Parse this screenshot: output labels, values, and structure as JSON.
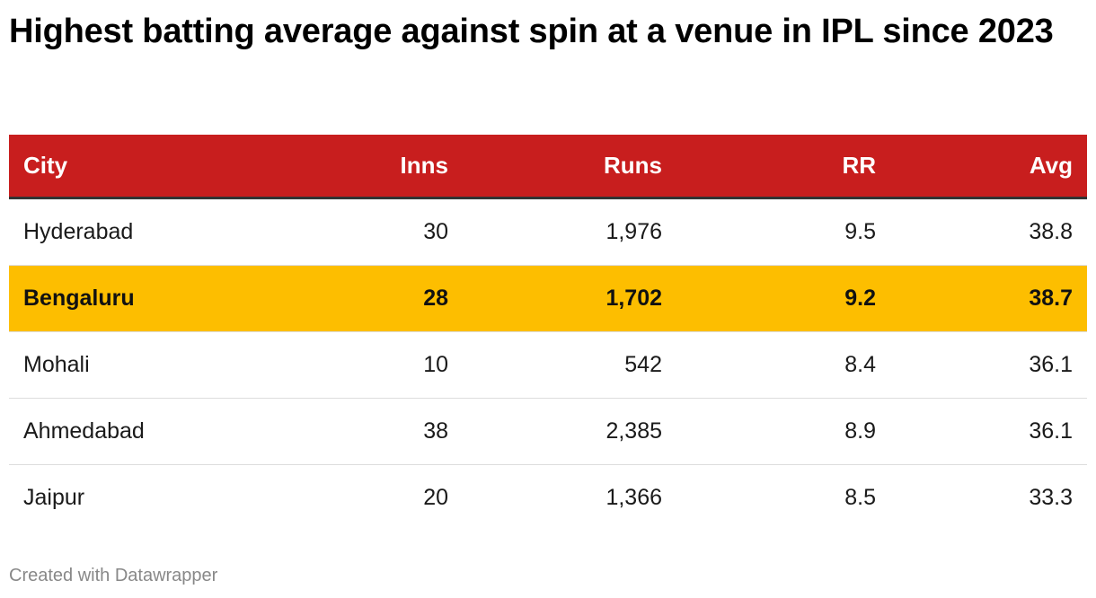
{
  "title": "Highest batting average against spin at a venue in IPL since 2023",
  "columns": [
    "City",
    "Inns",
    "Runs",
    "RR",
    "Avg"
  ],
  "rows": [
    {
      "city": "Hyderabad",
      "inns": "30",
      "runs": "1,976",
      "rr": "9.5",
      "avg": "38.8",
      "highlight": false
    },
    {
      "city": "Bengaluru",
      "inns": "28",
      "runs": "1,702",
      "rr": "9.2",
      "avg": "38.7",
      "highlight": true
    },
    {
      "city": "Mohali",
      "inns": "10",
      "runs": "542",
      "rr": "8.4",
      "avg": "36.1",
      "highlight": false
    },
    {
      "city": "Ahmedabad",
      "inns": "38",
      "runs": "2,385",
      "rr": "8.9",
      "avg": "36.1",
      "highlight": false
    },
    {
      "city": "Jaipur",
      "inns": "20",
      "runs": "1,366",
      "rr": "8.5",
      "avg": "33.3",
      "highlight": false
    }
  ],
  "colors": {
    "header_bg": "#c81e1e",
    "highlight_bg": "#fdbe00"
  },
  "credit": "Created with Datawrapper",
  "chart_data": {
    "type": "table",
    "title": "Highest batting average against spin at a venue in IPL since 2023",
    "columns": [
      "City",
      "Inns",
      "Runs",
      "RR",
      "Avg"
    ],
    "rows": [
      [
        "Hyderabad",
        30,
        1976,
        9.5,
        38.8
      ],
      [
        "Bengaluru",
        28,
        1702,
        9.2,
        38.7
      ],
      [
        "Mohali",
        10,
        542,
        8.4,
        36.1
      ],
      [
        "Ahmedabad",
        38,
        2385,
        8.9,
        36.1
      ],
      [
        "Jaipur",
        20,
        1366,
        8.5,
        33.3
      ]
    ],
    "highlighted_row": "Bengaluru"
  }
}
